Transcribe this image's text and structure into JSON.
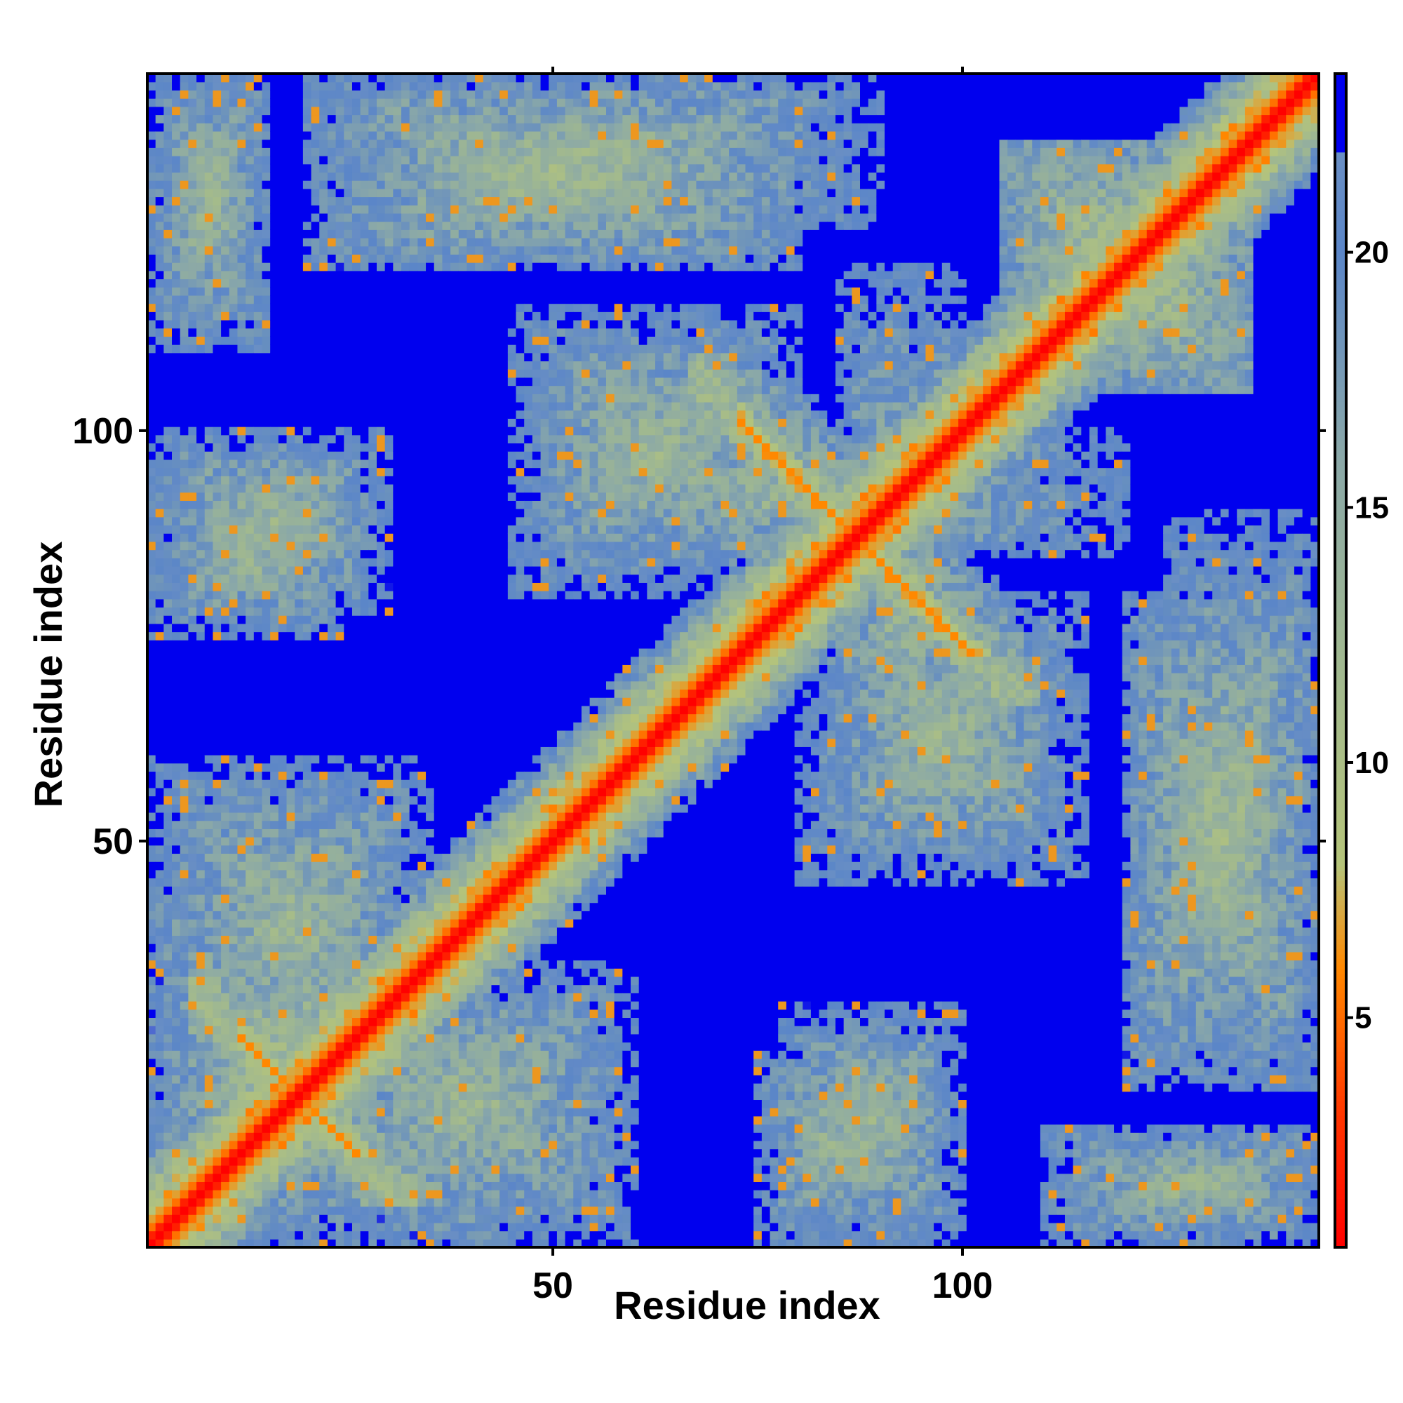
{
  "chart_data": {
    "type": "heatmap",
    "title": "",
    "xlabel": "Residue index",
    "ylabel": "Residue index",
    "n_residues": 143,
    "x_ticks": [
      50,
      100
    ],
    "y_ticks": [
      50,
      100
    ],
    "colorbar": {
      "range": [
        0.5,
        23.5
      ],
      "ticks": [
        5,
        10,
        15,
        20
      ],
      "stops": [
        {
          "value": 0.5,
          "color": "#ff0000"
        },
        {
          "value": 3.0,
          "color": "#ff3300"
        },
        {
          "value": 6.0,
          "color": "#ff8800"
        },
        {
          "value": 8.0,
          "color": "#b5c47a"
        },
        {
          "value": 12.0,
          "color": "#a0b890"
        },
        {
          "value": 16.0,
          "color": "#8aa8a8"
        },
        {
          "value": 20.0,
          "color": "#5b86c8"
        },
        {
          "value": 21.99,
          "color": "#6a8fc4"
        },
        {
          "value": 22.0,
          "color": "#0000ee"
        },
        {
          "value": 23.5,
          "color": "#0000ee"
        }
      ]
    },
    "diagonal_value": 0.5,
    "saturation_value": 22,
    "structural_features": [
      {
        "type": "diagonal",
        "residues": [
          1,
          143
        ],
        "value": 4
      },
      {
        "type": "anti-diagonal",
        "center": [
          87,
          87
        ],
        "range": [
          73,
          103
        ],
        "value": 6
      },
      {
        "type": "anti-diagonal",
        "center": [
          19,
          19
        ],
        "range": [
          12,
          27
        ],
        "value": 6
      },
      {
        "type": "contact-block",
        "x": [
          1,
          15
        ],
        "y": [
          120,
          143
        ],
        "value": 13
      },
      {
        "type": "contact-block",
        "x": [
          20,
          90
        ],
        "y": [
          125,
          143
        ],
        "value": 13
      },
      {
        "type": "contact-block",
        "x": [
          45,
          120
        ],
        "y": [
          85,
          100
        ],
        "value": 13
      },
      {
        "type": "contact-block",
        "x": [
          1,
          30
        ],
        "y": [
          1,
          45
        ],
        "value": 12
      },
      {
        "type": "contact-block",
        "x": [
          20,
          60
        ],
        "y": [
          1,
          35
        ],
        "value": 13
      },
      {
        "type": "contact-block",
        "x": [
          75,
          95
        ],
        "y": [
          1,
          25
        ],
        "value": 13
      },
      {
        "type": "contact-block",
        "x": [
          110,
          143
        ],
        "y": [
          1,
          15
        ],
        "value": 13
      },
      {
        "type": "contact-block",
        "x": [
          120,
          143
        ],
        "y": [
          20,
          80
        ],
        "value": 12
      },
      {
        "type": "contact-block",
        "x": [
          80,
          115
        ],
        "y": [
          45,
          80
        ],
        "value": 13
      },
      {
        "type": "contact-block",
        "x": [
          1,
          30
        ],
        "y": [
          78,
          100
        ],
        "value": 13
      },
      {
        "type": "contact-block",
        "x": [
          105,
          135
        ],
        "y": [
          105,
          135
        ],
        "value": 10
      }
    ]
  }
}
